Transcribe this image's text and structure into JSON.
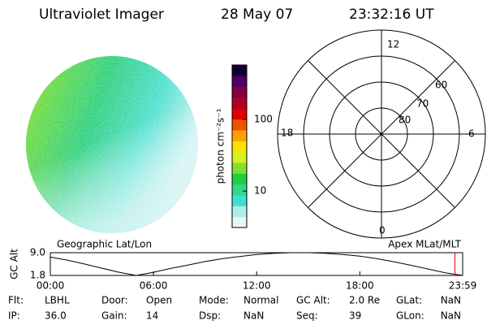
{
  "header": {
    "title": "Ultraviolet Imager",
    "date": "28 May 07",
    "time": "23:32:16 UT"
  },
  "mlt_dial": {
    "hour_labels": [
      "12",
      "6",
      "0",
      "18"
    ],
    "lat_labels": [
      "60",
      "70",
      "80"
    ]
  },
  "chart_data": [
    {
      "type": "colorbar",
      "label": "photon cm⁻²s⁻¹",
      "log_scale": true,
      "ylim": [
        3.1,
        575
      ],
      "yticks": [
        10,
        100
      ],
      "colors": [
        "#e8f6f6",
        "#b0ecec",
        "#40e0d0",
        "#30d890",
        "#20d040",
        "#80e030",
        "#d8f020",
        "#ffe000",
        "#ffa000",
        "#f05000",
        "#e00000",
        "#b00020",
        "#800040",
        "#500060",
        "#100030"
      ]
    },
    {
      "type": "line",
      "ylabel": "GC Alt",
      "left_title": "Geographic Lat/Lon",
      "right_title": "Apex MLat/MLT",
      "x": [
        0,
        1,
        2,
        3,
        4,
        5,
        6,
        7,
        8,
        9,
        10,
        11,
        12,
        13,
        14,
        15,
        16,
        17,
        18,
        19,
        20,
        21,
        22,
        23,
        23.98
      ],
      "values": [
        7.6,
        6.6,
        5.4,
        4.1,
        2.8,
        1.8,
        2.8,
        4.0,
        5.1,
        6.2,
        7.1,
        7.8,
        8.4,
        8.8,
        9.0,
        9.0,
        8.8,
        8.4,
        7.9,
        7.1,
        6.1,
        5.0,
        3.8,
        2.6,
        1.8
      ],
      "color": "#000000",
      "marker_x": 23.53,
      "marker_color": "#e00000",
      "xlim": [
        0,
        23.98
      ],
      "xticks": [
        {
          "value": 0,
          "label": "00:00"
        },
        {
          "value": 6,
          "label": "06:00"
        },
        {
          "value": 12,
          "label": "12:00"
        },
        {
          "value": 18,
          "label": "18:00"
        },
        {
          "value": 23.98,
          "label": "23:59"
        }
      ],
      "ylim": [
        1.8,
        9.0
      ],
      "yticks": [
        {
          "value": 9.0,
          "label": "9.0"
        },
        1.8
      ]
    }
  ],
  "status": [
    [
      {
        "label": "Flt:",
        "value": "LBHL"
      },
      {
        "label": "Door:",
        "value": "Open"
      },
      {
        "label": "Mode:",
        "value": "Normal"
      },
      {
        "label": "GC Alt:",
        "value": "2.0 Re"
      },
      {
        "label": "GLat:",
        "value": "NaN"
      }
    ],
    [
      {
        "label": "IP:",
        "value": "36.0"
      },
      {
        "label": "Gain:",
        "value": "14"
      },
      {
        "label": "Dsp:",
        "value": "NaN"
      },
      {
        "label": "Seq:",
        "value": "39"
      },
      {
        "label": "GLon:",
        "value": "NaN"
      }
    ]
  ]
}
